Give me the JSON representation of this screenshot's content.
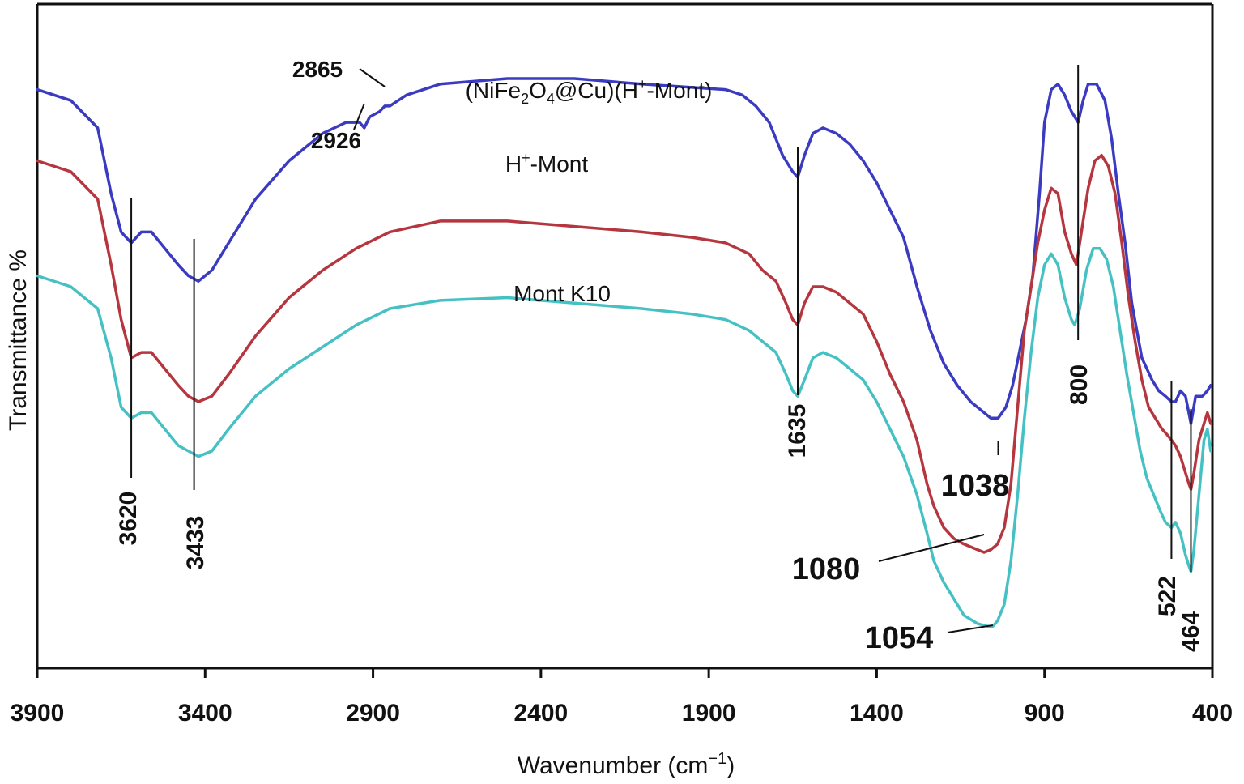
{
  "chart_data": {
    "type": "line",
    "xlabel": "Wavenumber (cm",
    "xlabel_sup": "−1",
    "xlabel_close": ")",
    "ylabel": "Transmittance %",
    "xlim": [
      3900,
      400
    ],
    "x_reversed": true,
    "ticks": [
      "3900",
      "3400",
      "2900",
      "2400",
      "1900",
      "1400",
      "900",
      "400"
    ],
    "grid": false,
    "colors": {
      "blue": "#3b3bc2",
      "red": "#b5363e",
      "cyan": "#45c1c4",
      "axis": "#111111"
    },
    "series": [
      {
        "name_parts": {
          "a": "(NiFe",
          "b": "2",
          "c": "O",
          "d": "4",
          "e": "@Cu)(H",
          "f": "+",
          "g": "-Mont)"
        },
        "color": "#3b3bc2",
        "points": [
          [
            3900,
            94
          ],
          [
            3800,
            92
          ],
          [
            3720,
            87
          ],
          [
            3680,
            75
          ],
          [
            3650,
            68
          ],
          [
            3620,
            66
          ],
          [
            3590,
            68
          ],
          [
            3560,
            68
          ],
          [
            3520,
            65
          ],
          [
            3480,
            62
          ],
          [
            3450,
            60
          ],
          [
            3420,
            59
          ],
          [
            3380,
            61
          ],
          [
            3330,
            66
          ],
          [
            3250,
            74
          ],
          [
            3150,
            81
          ],
          [
            3050,
            86
          ],
          [
            2980,
            88
          ],
          [
            2940,
            88
          ],
          [
            2926,
            87
          ],
          [
            2910,
            89
          ],
          [
            2880,
            90
          ],
          [
            2865,
            91
          ],
          [
            2850,
            91
          ],
          [
            2800,
            93
          ],
          [
            2700,
            95
          ],
          [
            2500,
            96
          ],
          [
            2300,
            96
          ],
          [
            2100,
            95
          ],
          [
            1850,
            94
          ],
          [
            1800,
            93
          ],
          [
            1760,
            91
          ],
          [
            1720,
            88
          ],
          [
            1680,
            82
          ],
          [
            1650,
            79
          ],
          [
            1635,
            78
          ],
          [
            1615,
            82
          ],
          [
            1590,
            86
          ],
          [
            1560,
            87
          ],
          [
            1520,
            86
          ],
          [
            1480,
            84
          ],
          [
            1440,
            81
          ],
          [
            1400,
            77
          ],
          [
            1360,
            72
          ],
          [
            1320,
            67
          ],
          [
            1280,
            58
          ],
          [
            1240,
            50
          ],
          [
            1200,
            44
          ],
          [
            1160,
            40
          ],
          [
            1120,
            37
          ],
          [
            1080,
            35
          ],
          [
            1060,
            34
          ],
          [
            1038,
            34
          ],
          [
            1015,
            36
          ],
          [
            995,
            40
          ],
          [
            975,
            46
          ],
          [
            955,
            52
          ],
          [
            935,
            60
          ],
          [
            915,
            75
          ],
          [
            900,
            88
          ],
          [
            880,
            94
          ],
          [
            860,
            95
          ],
          [
            840,
            93
          ],
          [
            820,
            90
          ],
          [
            800,
            88
          ],
          [
            785,
            92
          ],
          [
            770,
            95
          ],
          [
            745,
            95
          ],
          [
            720,
            92
          ],
          [
            700,
            85
          ],
          [
            680,
            75
          ],
          [
            660,
            66
          ],
          [
            640,
            55
          ],
          [
            610,
            45
          ],
          [
            580,
            41
          ],
          [
            560,
            39
          ],
          [
            540,
            38
          ],
          [
            522,
            37
          ],
          [
            510,
            37
          ],
          [
            495,
            39
          ],
          [
            480,
            38
          ],
          [
            464,
            33
          ],
          [
            450,
            38
          ],
          [
            430,
            38
          ],
          [
            415,
            39
          ],
          [
            405,
            40
          ]
        ]
      },
      {
        "name_parts": {
          "a": "H",
          "b": "+",
          "c": "-Mont"
        },
        "color": "#b5363e",
        "points": [
          [
            3900,
            81
          ],
          [
            3800,
            79
          ],
          [
            3720,
            74
          ],
          [
            3680,
            62
          ],
          [
            3650,
            52
          ],
          [
            3620,
            45
          ],
          [
            3590,
            46
          ],
          [
            3560,
            46
          ],
          [
            3520,
            43
          ],
          [
            3480,
            40
          ],
          [
            3450,
            38
          ],
          [
            3420,
            37
          ],
          [
            3380,
            38
          ],
          [
            3330,
            42
          ],
          [
            3250,
            49
          ],
          [
            3150,
            56
          ],
          [
            3050,
            61
          ],
          [
            2950,
            65
          ],
          [
            2850,
            68
          ],
          [
            2700,
            70
          ],
          [
            2500,
            70
          ],
          [
            2300,
            69
          ],
          [
            2100,
            68
          ],
          [
            1950,
            67
          ],
          [
            1850,
            66
          ],
          [
            1780,
            64
          ],
          [
            1740,
            61
          ],
          [
            1700,
            59
          ],
          [
            1670,
            55
          ],
          [
            1650,
            52
          ],
          [
            1635,
            51
          ],
          [
            1615,
            55
          ],
          [
            1590,
            58
          ],
          [
            1560,
            58
          ],
          [
            1520,
            57
          ],
          [
            1480,
            55
          ],
          [
            1440,
            53
          ],
          [
            1400,
            48
          ],
          [
            1360,
            42
          ],
          [
            1320,
            37
          ],
          [
            1280,
            30
          ],
          [
            1250,
            22
          ],
          [
            1230,
            18
          ],
          [
            1200,
            14
          ],
          [
            1170,
            12
          ],
          [
            1140,
            11
          ],
          [
            1100,
            10
          ],
          [
            1080,
            9.5
          ],
          [
            1060,
            10
          ],
          [
            1040,
            11
          ],
          [
            1020,
            14
          ],
          [
            1000,
            22
          ],
          [
            980,
            36
          ],
          [
            960,
            50
          ],
          [
            940,
            58
          ],
          [
            920,
            66
          ],
          [
            900,
            72
          ],
          [
            880,
            76
          ],
          [
            860,
            75
          ],
          [
            840,
            68
          ],
          [
            820,
            64
          ],
          [
            805,
            62
          ],
          [
            790,
            68
          ],
          [
            770,
            76
          ],
          [
            750,
            81
          ],
          [
            730,
            82
          ],
          [
            710,
            80
          ],
          [
            690,
            75
          ],
          [
            670,
            66
          ],
          [
            650,
            56
          ],
          [
            630,
            48
          ],
          [
            610,
            41
          ],
          [
            590,
            36
          ],
          [
            570,
            34
          ],
          [
            550,
            32
          ],
          [
            535,
            31
          ],
          [
            522,
            30
          ],
          [
            510,
            29
          ],
          [
            495,
            27
          ],
          [
            480,
            24
          ],
          [
            470,
            22
          ],
          [
            464,
            21
          ],
          [
            455,
            24
          ],
          [
            440,
            30
          ],
          [
            425,
            33
          ],
          [
            415,
            35
          ],
          [
            405,
            33
          ]
        ]
      },
      {
        "name": "Mont K10",
        "color": "#45c1c4",
        "points": [
          [
            3900,
            60
          ],
          [
            3800,
            58
          ],
          [
            3720,
            54
          ],
          [
            3680,
            45
          ],
          [
            3650,
            36
          ],
          [
            3620,
            34
          ],
          [
            3590,
            35
          ],
          [
            3560,
            35
          ],
          [
            3520,
            32
          ],
          [
            3480,
            29
          ],
          [
            3450,
            28
          ],
          [
            3420,
            27
          ],
          [
            3380,
            28
          ],
          [
            3330,
            32
          ],
          [
            3250,
            38
          ],
          [
            3150,
            43
          ],
          [
            3050,
            47
          ],
          [
            2950,
            51
          ],
          [
            2850,
            54
          ],
          [
            2700,
            55.5
          ],
          [
            2500,
            56
          ],
          [
            2300,
            55
          ],
          [
            2100,
            54
          ],
          [
            1950,
            53
          ],
          [
            1850,
            52
          ],
          [
            1780,
            50
          ],
          [
            1740,
            48
          ],
          [
            1700,
            46
          ],
          [
            1670,
            42
          ],
          [
            1650,
            39
          ],
          [
            1635,
            38
          ],
          [
            1615,
            41
          ],
          [
            1590,
            45
          ],
          [
            1560,
            46
          ],
          [
            1520,
            45
          ],
          [
            1480,
            43
          ],
          [
            1440,
            41
          ],
          [
            1400,
            37
          ],
          [
            1360,
            32
          ],
          [
            1320,
            27
          ],
          [
            1280,
            20
          ],
          [
            1250,
            13
          ],
          [
            1230,
            8
          ],
          [
            1200,
            4
          ],
          [
            1170,
            1
          ],
          [
            1140,
            -2
          ],
          [
            1100,
            -3.5
          ],
          [
            1070,
            -4
          ],
          [
            1054,
            -4
          ],
          [
            1040,
            -3
          ],
          [
            1020,
            0
          ],
          [
            1000,
            8
          ],
          [
            980,
            20
          ],
          [
            960,
            34
          ],
          [
            940,
            46
          ],
          [
            920,
            56
          ],
          [
            900,
            62
          ],
          [
            880,
            64
          ],
          [
            860,
            62
          ],
          [
            840,
            56
          ],
          [
            820,
            52
          ],
          [
            810,
            51
          ],
          [
            795,
            54
          ],
          [
            775,
            61
          ],
          [
            755,
            65
          ],
          [
            735,
            65
          ],
          [
            715,
            63
          ],
          [
            695,
            58
          ],
          [
            675,
            50
          ],
          [
            655,
            42
          ],
          [
            635,
            35
          ],
          [
            615,
            28
          ],
          [
            595,
            23
          ],
          [
            575,
            20
          ],
          [
            555,
            17
          ],
          [
            540,
            15
          ],
          [
            522,
            14
          ],
          [
            510,
            15
          ],
          [
            495,
            13
          ],
          [
            480,
            9
          ],
          [
            470,
            7
          ],
          [
            464,
            6
          ],
          [
            455,
            10
          ],
          [
            440,
            20
          ],
          [
            425,
            30
          ],
          [
            415,
            32
          ],
          [
            405,
            28
          ]
        ]
      }
    ],
    "peak_labels": [
      "3620",
      "3433",
      "2865",
      "2926",
      "1635",
      "1038",
      "1080",
      "1054",
      "800",
      "522",
      "464"
    ]
  }
}
